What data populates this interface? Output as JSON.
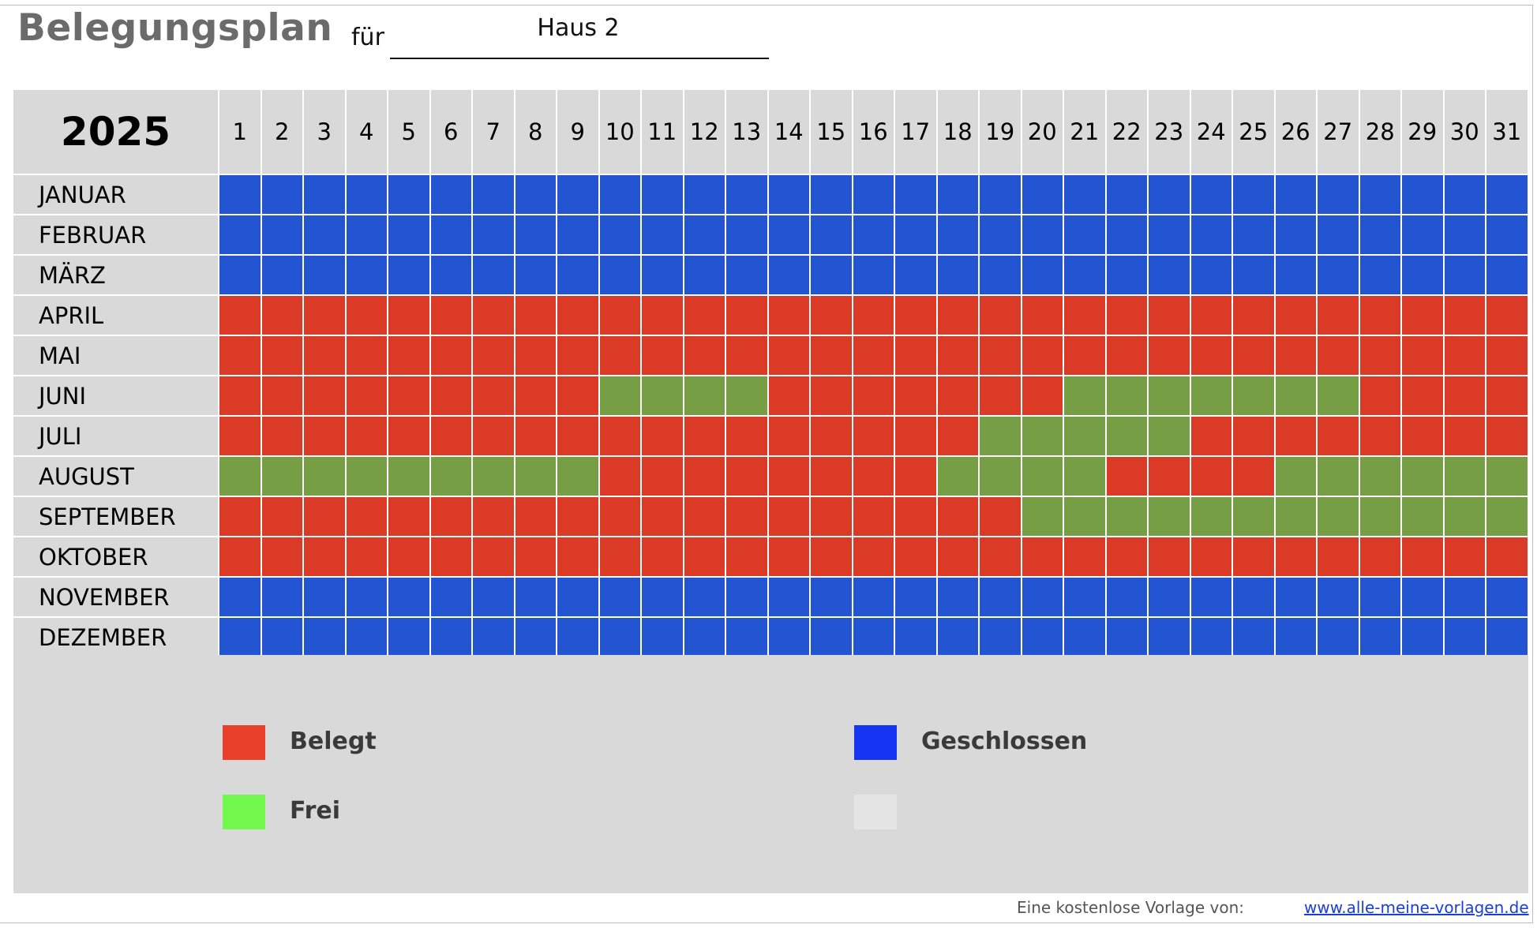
{
  "header": {
    "title": "Belegungsplan",
    "for_label": "für",
    "house_value": "Haus 2"
  },
  "calendar": {
    "year": "2025",
    "days": [
      "1",
      "2",
      "3",
      "4",
      "5",
      "6",
      "7",
      "8",
      "9",
      "10",
      "11",
      "12",
      "13",
      "14",
      "15",
      "16",
      "17",
      "18",
      "19",
      "20",
      "21",
      "22",
      "23",
      "24",
      "25",
      "26",
      "27",
      "28",
      "29",
      "30",
      "31"
    ],
    "months": [
      {
        "name": "JANUAR",
        "status": "GGGGGGGGGGGGGGGGGGGGGGGGGGGGGGG"
      },
      {
        "name": "FEBRUAR",
        "status": "GGGGGGGGGGGGGGGGGGGGGGGGGGGGGGG"
      },
      {
        "name": "MÄRZ",
        "status": "GGGGGGGGGGGGGGGGGGGGGGGGGGGGGGG"
      },
      {
        "name": "APRIL",
        "status": "BBBBBBBBBBBBBBBBBBBBBBBBBBBBBBB"
      },
      {
        "name": "MAI",
        "status": "BBBBBBBBBBBBBBBBBBBBBBBBBBBBBBB"
      },
      {
        "name": "JUNI",
        "status": "BBBBBBBBBFFFFBBBBBBBFFFFFFFBBBB"
      },
      {
        "name": "JULI",
        "status": "BBBBBBBBBBBBBBBBBBFFFFFBBBBBBBB"
      },
      {
        "name": "AUGUST",
        "status": "FFFFFFFFFBBBBBBBBFFFFBBBBFFFFFF"
      },
      {
        "name": "SEPTEMBER",
        "status": "BBBBBBBBBBBBBBBBBBBFFFFFFFFFFFF"
      },
      {
        "name": "OKTOBER",
        "status": "BBBBBBBBBBBBBBBBBBBBBBBBBBBBBBB"
      },
      {
        "name": "NOVEMBER",
        "status": "GGGGGGGGGGGGGGGGGGGGGGGGGGGGGGG"
      },
      {
        "name": "DEZEMBER",
        "status": "GGGGGGGGGGGGGGGGGGGGGGGGGGGGGGG"
      }
    ]
  },
  "colors": {
    "belegt": "#da3a26",
    "frei": "#769f45",
    "geschlossen": "#2355d3",
    "legend_belegt": "#e8402a",
    "legend_frei": "#72f74c",
    "legend_geschlossen": "#1635f2",
    "legend_empty": "#e4e4e4"
  },
  "legend": {
    "belegt_label": "Belegt",
    "frei_label": "Frei",
    "geschlossen_label": "Geschlossen"
  },
  "footer": {
    "text": "Eine kostenlose Vorlage von:",
    "link": "www.alle-meine-vorlagen.de"
  }
}
